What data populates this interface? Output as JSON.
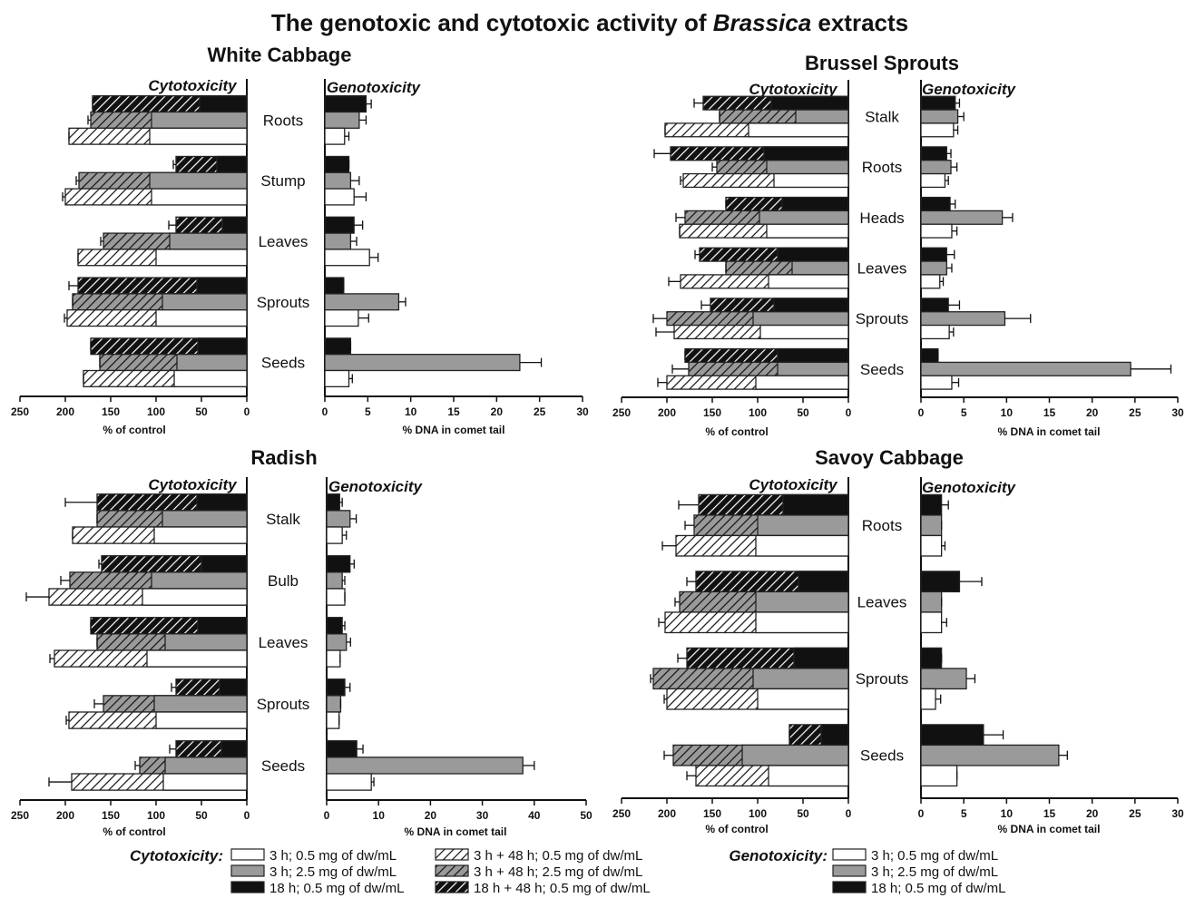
{
  "title": {
    "pre": "The genotoxic and cytotoxic activity of ",
    "italic": "Brassica",
    "post": " extracts"
  },
  "colors": {
    "black": "#111111",
    "gray": "#9a9a9a",
    "white": "#ffffff",
    "outline": "#222222"
  },
  "legend": {
    "cyto_title": "Cytotoxicity:",
    "geno_title": "Genotoxicity:",
    "cyto_items": [
      "3 h; 0.5 mg of dw/mL",
      "3 h; 2.5 mg of dw/mL",
      "18 h; 0.5 mg of dw/mL",
      "3 h + 48 h; 0.5 mg of dw/mL",
      "3 h + 48 h; 2.5 mg of dw/mL",
      "18 h + 48 h; 0.5 mg of dw/mL"
    ],
    "geno_items": [
      "3 h; 0.5 mg of dw/mL",
      "3 h; 2.5 mg of dw/mL",
      "18 h; 0.5 mg of dw/mL"
    ]
  },
  "chart_data": [
    {
      "type": "bar",
      "title": "White Cabbage",
      "cyto_label": "Cytotoxicity",
      "geno_label": "Genotoxicity",
      "cyto_xlabel": "% of control",
      "geno_xlabel": "% DNA in comet tail",
      "cyto_xlim": [
        250,
        0
      ],
      "geno_xlim": [
        0,
        30
      ],
      "cyto_ticks": [
        250,
        200,
        150,
        100,
        50,
        0
      ],
      "geno_ticks": [
        0,
        5,
        10,
        15,
        20,
        25,
        30
      ],
      "categories": [
        "Roots",
        "Stump",
        "Leaves",
        "Sprouts",
        "Seeds"
      ],
      "cytotoxicity": [
        {
          "r18_48": 170,
          "r18": 52,
          "r18_err": 0,
          "m25_48": 172,
          "m25": 105,
          "m25_err": 3,
          "m05_48": 196,
          "m05": 107,
          "m05_err": 0
        },
        {
          "r18_48": 78,
          "r18": 33,
          "r18_err": 3,
          "m25_48": 185,
          "m25": 107,
          "m25_err": 3,
          "m05_48": 200,
          "m05": 105,
          "m05_err": 3
        },
        {
          "r18_48": 78,
          "r18": 27,
          "r18_err": 8,
          "m25_48": 158,
          "m25": 85,
          "m25_err": 3,
          "m05_48": 186,
          "m05": 100,
          "m05_err": 0
        },
        {
          "r18_48": 186,
          "r18": 55,
          "r18_err": 10,
          "m25_48": 192,
          "m25": 93,
          "m25_err": 0,
          "m05_48": 198,
          "m05": 100,
          "m05_err": 3
        },
        {
          "r18_48": 172,
          "r18": 54,
          "r18_err": 0,
          "m25_48": 162,
          "m25": 77,
          "m25_err": 0,
          "m05_48": 180,
          "m05": 80,
          "m05_err": 0
        }
      ],
      "genotoxicity": [
        {
          "h18": 4.8,
          "h18_err": 0.6,
          "h3_25": 4.0,
          "h3_25_err": 0.8,
          "h3_05": 2.3,
          "h3_05_err": 0.5
        },
        {
          "h18": 2.8,
          "h18_err": 0.0,
          "h3_25": 3.0,
          "h3_25_err": 1.0,
          "h3_05": 3.4,
          "h3_05_err": 1.4
        },
        {
          "h18": 3.4,
          "h18_err": 1.0,
          "h3_25": 3.0,
          "h3_25_err": 0.7,
          "h3_05": 5.2,
          "h3_05_err": 1.0
        },
        {
          "h18": 2.2,
          "h18_err": 0.0,
          "h3_25": 8.6,
          "h3_25_err": 0.8,
          "h3_05": 3.9,
          "h3_05_err": 1.2
        },
        {
          "h18": 3.0,
          "h18_err": 0.0,
          "h3_25": 22.7,
          "h3_25_err": 2.5,
          "h3_05": 2.8,
          "h3_05_err": 0.4
        }
      ]
    },
    {
      "type": "bar",
      "title": "Brussel Sprouts",
      "cyto_label": "Cytotoxicity",
      "geno_label": "Genotoxicity",
      "cyto_xlabel": "% of control",
      "geno_xlabel": "% DNA in comet tail",
      "cyto_xlim": [
        250,
        0
      ],
      "geno_xlim": [
        0,
        30
      ],
      "cyto_ticks": [
        250,
        200,
        150,
        100,
        50,
        0
      ],
      "geno_ticks": [
        0,
        5,
        10,
        15,
        20,
        25,
        30
      ],
      "categories": [
        "Stalk",
        "Roots",
        "Heads",
        "Leaves",
        "Sprouts",
        "Seeds"
      ],
      "cytotoxicity": [
        {
          "r18_48": 160,
          "r18": 85,
          "r18_err": 10,
          "m25_48": 142,
          "m25": 58,
          "m25_err": 0,
          "m05_48": 202,
          "m05": 110,
          "m05_err": 0
        },
        {
          "r18_48": 196,
          "r18": 93,
          "r18_err": 18,
          "m25_48": 145,
          "m25": 90,
          "m25_err": 5,
          "m05_48": 182,
          "m05": 82,
          "m05_err": 3
        },
        {
          "r18_48": 135,
          "r18": 73,
          "r18_err": 0,
          "m25_48": 180,
          "m25": 98,
          "m25_err": 10,
          "m05_48": 186,
          "m05": 90,
          "m05_err": 0
        },
        {
          "r18_48": 164,
          "r18": 78,
          "r18_err": 5,
          "m25_48": 135,
          "m25": 62,
          "m25_err": 0,
          "m05_48": 185,
          "m05": 88,
          "m05_err": 13
        },
        {
          "r18_48": 152,
          "r18": 82,
          "r18_err": 10,
          "m25_48": 200,
          "m25": 105,
          "m25_err": 15,
          "m05_48": 192,
          "m05": 97,
          "m05_err": 20
        },
        {
          "r18_48": 180,
          "r18": 78,
          "r18_err": 0,
          "m25_48": 176,
          "m25": 78,
          "m25_err": 18,
          "m05_48": 200,
          "m05": 102,
          "m05_err": 10
        }
      ],
      "genotoxicity": [
        {
          "h18": 4.0,
          "h18_err": 0.5,
          "h3_25": 4.3,
          "h3_25_err": 0.7,
          "h3_05": 3.8,
          "h3_05_err": 0.5
        },
        {
          "h18": 3.0,
          "h18_err": 0.5,
          "h3_25": 3.5,
          "h3_25_err": 0.7,
          "h3_05": 2.8,
          "h3_05_err": 0.4
        },
        {
          "h18": 3.4,
          "h18_err": 0.6,
          "h3_25": 9.5,
          "h3_25_err": 1.2,
          "h3_05": 3.6,
          "h3_05_err": 0.6
        },
        {
          "h18": 3.0,
          "h18_err": 0.9,
          "h3_25": 3.0,
          "h3_25_err": 0.6,
          "h3_05": 2.2,
          "h3_05_err": 0.4
        },
        {
          "h18": 3.2,
          "h18_err": 1.3,
          "h3_25": 9.8,
          "h3_25_err": 3.0,
          "h3_05": 3.3,
          "h3_05_err": 0.5
        },
        {
          "h18": 2.0,
          "h18_err": 0.0,
          "h3_25": 24.5,
          "h3_25_err": 4.7,
          "h3_05": 3.6,
          "h3_05_err": 0.8
        }
      ]
    },
    {
      "type": "bar",
      "title": "Radish",
      "cyto_label": "Cytotoxicity",
      "geno_label": "Genotoxicity",
      "cyto_xlabel": "% of control",
      "geno_xlabel": "% DNA in comet tail",
      "cyto_xlim": [
        250,
        0
      ],
      "geno_xlim": [
        0,
        50
      ],
      "cyto_ticks": [
        250,
        200,
        150,
        100,
        50,
        0
      ],
      "geno_ticks": [
        0,
        10,
        20,
        30,
        40,
        50
      ],
      "categories": [
        "Stalk",
        "Bulb",
        "Leaves",
        "Sprouts",
        "Seeds"
      ],
      "cytotoxicity": [
        {
          "r18_48": 165,
          "r18": 55,
          "r18_err": 35,
          "m25_48": 165,
          "m25": 93,
          "m25_err": 0,
          "m05_48": 192,
          "m05": 102,
          "m05_err": 0
        },
        {
          "r18_48": 160,
          "r18": 50,
          "r18_err": 3,
          "m25_48": 195,
          "m25": 105,
          "m25_err": 10,
          "m05_48": 218,
          "m05": 115,
          "m05_err": 25
        },
        {
          "r18_48": 172,
          "r18": 54,
          "r18_err": 0,
          "m25_48": 165,
          "m25": 90,
          "m25_err": 0,
          "m05_48": 212,
          "m05": 110,
          "m05_err": 5
        },
        {
          "r18_48": 78,
          "r18": 30,
          "r18_err": 5,
          "m25_48": 158,
          "m25": 102,
          "m25_err": 10,
          "m05_48": 196,
          "m05": 100,
          "m05_err": 3
        },
        {
          "r18_48": 78,
          "r18": 28,
          "r18_err": 7,
          "m25_48": 118,
          "m25": 90,
          "m25_err": 5,
          "m05_48": 193,
          "m05": 92,
          "m05_err": 25
        }
      ],
      "genotoxicity": [
        {
          "h18": 2.5,
          "h18_err": 0.5,
          "h3_25": 4.5,
          "h3_25_err": 1.2,
          "h3_05": 3.0,
          "h3_05_err": 0.8
        },
        {
          "h18": 4.5,
          "h18_err": 0.8,
          "h3_25": 3.0,
          "h3_25_err": 0.5,
          "h3_05": 3.5,
          "h3_05_err": 0.0
        },
        {
          "h18": 3.0,
          "h18_err": 0.5,
          "h3_25": 3.8,
          "h3_25_err": 0.8,
          "h3_05": 2.6,
          "h3_05_err": 0.0
        },
        {
          "h18": 3.5,
          "h18_err": 1.0,
          "h3_25": 2.7,
          "h3_25_err": 0.0,
          "h3_05": 2.4,
          "h3_05_err": 0.0
        },
        {
          "h18": 5.8,
          "h18_err": 1.2,
          "h3_25": 37.8,
          "h3_25_err": 2.2,
          "h3_05": 8.6,
          "h3_05_err": 0.5
        }
      ]
    },
    {
      "type": "bar",
      "title": "Savoy Cabbage",
      "cyto_label": "Cytotoxicity",
      "geno_label": "Genotoxicity",
      "cyto_xlabel": "% of control",
      "geno_xlabel": "% DNA in comet tail",
      "cyto_xlim": [
        250,
        0
      ],
      "geno_xlim": [
        0,
        30
      ],
      "cyto_ticks": [
        250,
        200,
        150,
        100,
        50,
        0
      ],
      "geno_ticks": [
        0,
        5,
        10,
        15,
        20,
        25,
        30
      ],
      "categories": [
        "Roots",
        "Leaves",
        "Sprouts",
        "Seeds"
      ],
      "cytotoxicity": [
        {
          "r18_48": 165,
          "r18": 72,
          "r18_err": 22,
          "m25_48": 170,
          "m25": 100,
          "m25_err": 10,
          "m05_48": 190,
          "m05": 102,
          "m05_err": 15
        },
        {
          "r18_48": 168,
          "r18": 55,
          "r18_err": 10,
          "m25_48": 186,
          "m25": 102,
          "m25_err": 5,
          "m05_48": 202,
          "m05": 102,
          "m05_err": 7
        },
        {
          "r18_48": 178,
          "r18": 60,
          "r18_err": 10,
          "m25_48": 215,
          "m25": 105,
          "m25_err": 3,
          "m05_48": 200,
          "m05": 100,
          "m05_err": 3
        },
        {
          "r18_48": 65,
          "r18": 30,
          "r18_err": 0,
          "m25_48": 193,
          "m25": 117,
          "m25_err": 10,
          "m05_48": 168,
          "m05": 88,
          "m05_err": 10
        }
      ],
      "genotoxicity": [
        {
          "h18": 2.4,
          "h18_err": 0.8,
          "h3_25": 2.4,
          "h3_25_err": 0.0,
          "h3_05": 2.4,
          "h3_05_err": 0.4
        },
        {
          "h18": 4.5,
          "h18_err": 2.6,
          "h3_25": 2.4,
          "h3_25_err": 0.0,
          "h3_05": 2.4,
          "h3_05_err": 0.6
        },
        {
          "h18": 2.4,
          "h18_err": 0.0,
          "h3_25": 5.3,
          "h3_25_err": 1.0,
          "h3_05": 1.7,
          "h3_05_err": 0.6
        },
        {
          "h18": 7.3,
          "h18_err": 2.3,
          "h3_25": 16.1,
          "h3_25_err": 1.0,
          "h3_05": 4.2,
          "h3_05_err": 0.0
        }
      ]
    }
  ]
}
